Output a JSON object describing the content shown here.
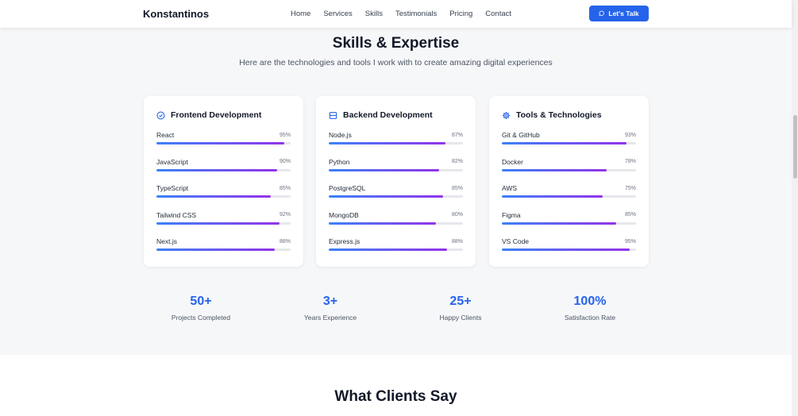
{
  "nav": {
    "brand": "Konstantinos",
    "links": [
      "Home",
      "Services",
      "Skills",
      "Testimonials",
      "Pricing",
      "Contact"
    ],
    "cta_label": "Let's Talk"
  },
  "skills_section": {
    "title": "Skills & Expertise",
    "subtitle": "Here are the technologies and tools I work with to create amazing digital experiences",
    "cards": [
      {
        "title": "Frontend Development",
        "icon": "check-circle-icon",
        "skills": [
          {
            "name": "React",
            "percent": "95%",
            "level": 95
          },
          {
            "name": "JavaScript",
            "percent": "90%",
            "level": 90
          },
          {
            "name": "TypeScript",
            "percent": "85%",
            "level": 85
          },
          {
            "name": "Tailwind CSS",
            "percent": "92%",
            "level": 92
          },
          {
            "name": "Next.js",
            "percent": "88%",
            "level": 88
          }
        ]
      },
      {
        "title": "Backend Development",
        "icon": "server-icon",
        "skills": [
          {
            "name": "Node.js",
            "percent": "87%",
            "level": 87
          },
          {
            "name": "Python",
            "percent": "82%",
            "level": 82
          },
          {
            "name": "PostgreSQL",
            "percent": "85%",
            "level": 85
          },
          {
            "name": "MongoDB",
            "percent": "80%",
            "level": 80
          },
          {
            "name": "Express.js",
            "percent": "88%",
            "level": 88
          }
        ]
      },
      {
        "title": "Tools & Technologies",
        "icon": "gear-icon",
        "skills": [
          {
            "name": "Git & GitHub",
            "percent": "93%",
            "level": 93
          },
          {
            "name": "Docker",
            "percent": "78%",
            "level": 78
          },
          {
            "name": "AWS",
            "percent": "75%",
            "level": 75
          },
          {
            "name": "Figma",
            "percent": "85%",
            "level": 85
          },
          {
            "name": "VS Code",
            "percent": "95%",
            "level": 95
          }
        ]
      }
    ]
  },
  "stats": [
    {
      "value": "50+",
      "label": "Projects Completed"
    },
    {
      "value": "3+",
      "label": "Years Experience"
    },
    {
      "value": "25+",
      "label": "Happy Clients"
    },
    {
      "value": "100%",
      "label": "Satisfaction Rate"
    }
  ],
  "testimonials": {
    "title": "What Clients Say"
  },
  "colors": {
    "accent": "#2563eb",
    "bar_start": "#3b82f6",
    "bar_end": "#9333ea"
  }
}
